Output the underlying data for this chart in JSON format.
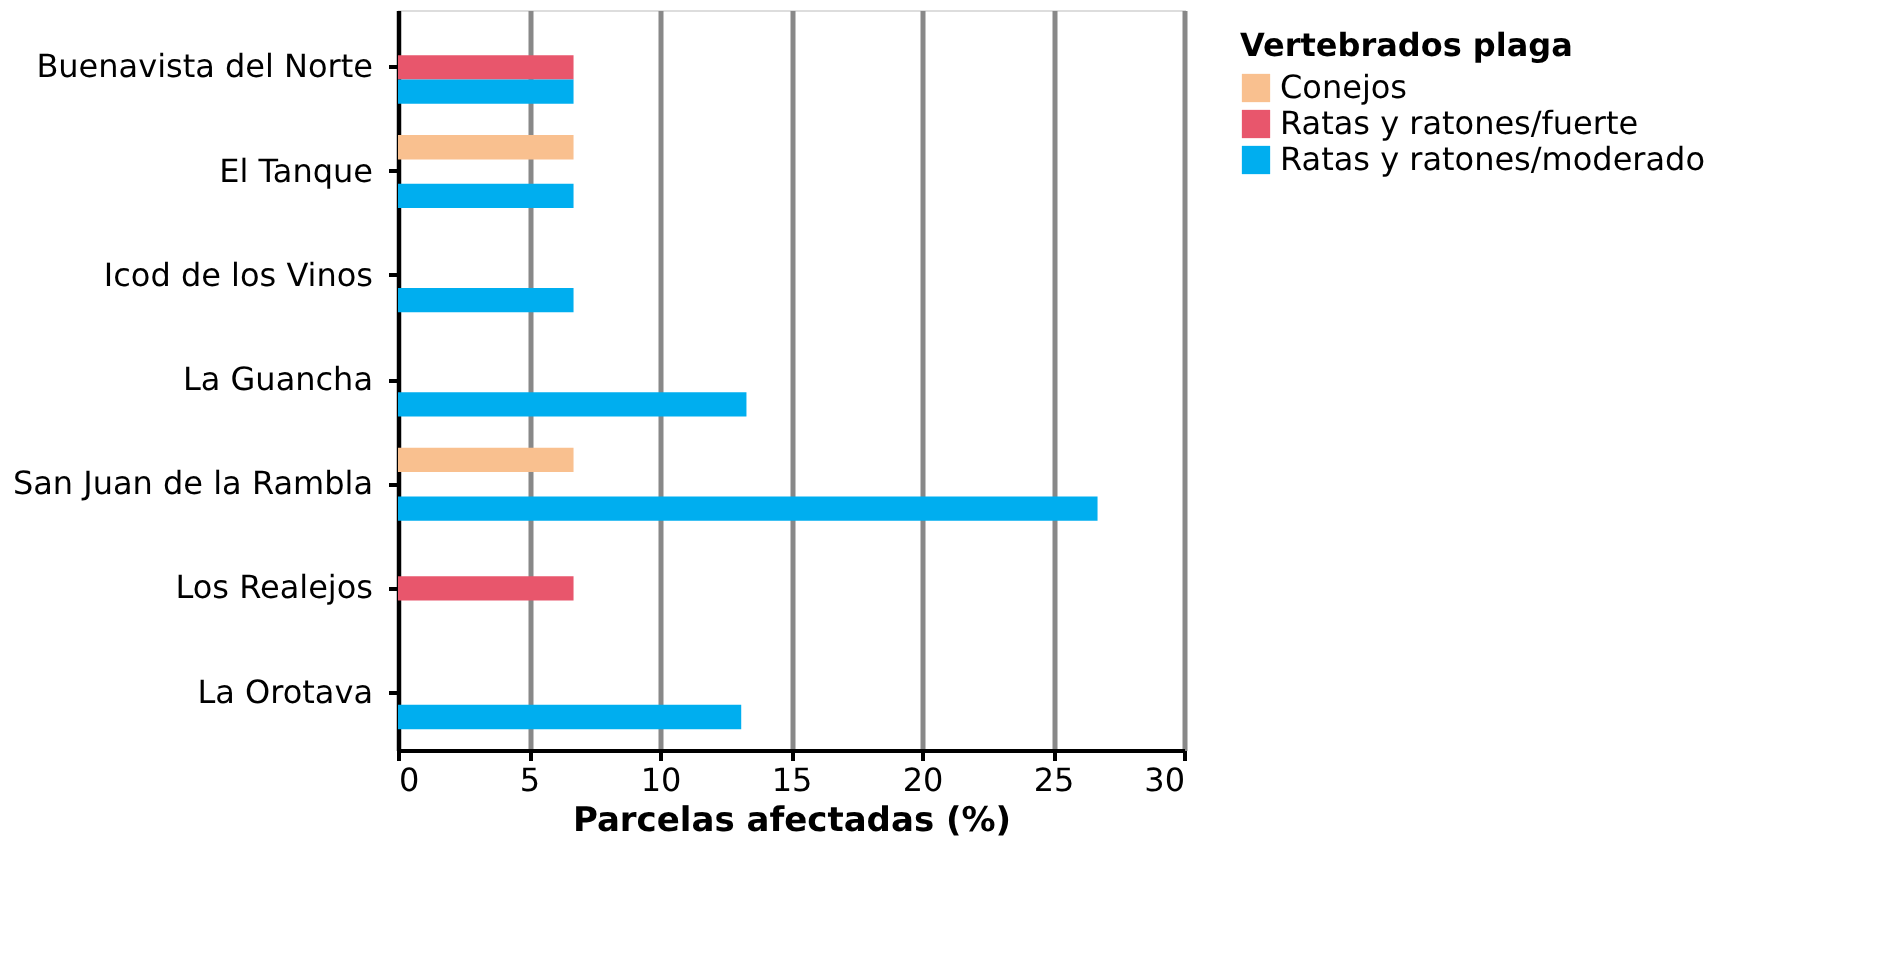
{
  "chart_data": {
    "type": "bar",
    "orientation": "horizontal",
    "xlabel": "Parcelas afectadas (%)",
    "legend_title": "Vertebrados plaga",
    "legend": "right",
    "grid": "x",
    "categories": [
      "Buenavista del Norte",
      "El Tanque",
      "Icod de los Vinos",
      "La Guancha",
      "San Juan de la Rambla",
      "Los Realejos",
      "La Orotava"
    ],
    "series": [
      {
        "name": "Conejos",
        "color": "#f9c08f",
        "values": [
          null,
          6.7,
          null,
          null,
          6.7,
          null,
          null
        ]
      },
      {
        "name": "Ratas y ratones/fuerte",
        "color": "#e8566c",
        "values": [
          6.7,
          null,
          null,
          null,
          null,
          6.7,
          null
        ]
      },
      {
        "name": "Ratas y ratones/moderado",
        "color": "#00aeef",
        "values": [
          6.7,
          6.7,
          6.7,
          13.3,
          26.7,
          null,
          13.1
        ]
      }
    ],
    "xlim": [
      0,
      30
    ],
    "xticks": [
      0,
      5,
      10,
      15,
      20,
      25,
      30
    ]
  }
}
